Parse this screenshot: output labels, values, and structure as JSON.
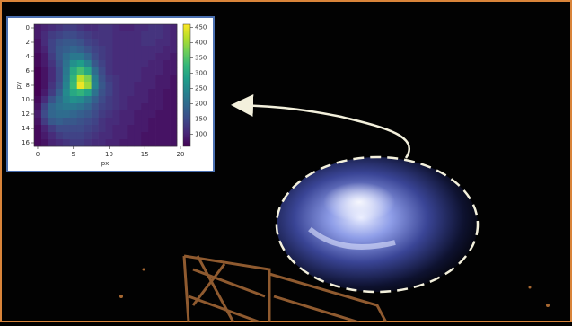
{
  "chart_data": {
    "type": "heatmap",
    "xlabel": "px",
    "ylabel": "py",
    "colormap": "viridis",
    "xlim": [
      -0.5,
      19.5
    ],
    "ylim": [
      16.5,
      -0.5
    ],
    "xticks": [
      0,
      5,
      10,
      15,
      20
    ],
    "yticks": [
      0,
      2,
      4,
      6,
      8,
      10,
      12,
      14,
      16
    ],
    "zlim": [
      60,
      460
    ],
    "zticks": [
      100,
      150,
      200,
      250,
      300,
      350,
      400,
      450
    ],
    "z": [
      [
        90,
        100,
        110,
        120,
        130,
        130,
        120,
        110,
        110,
        120,
        120,
        110,
        100,
        100,
        110,
        110,
        120,
        120,
        110,
        100
      ],
      [
        90,
        110,
        130,
        140,
        150,
        150,
        140,
        130,
        120,
        120,
        120,
        110,
        110,
        110,
        110,
        120,
        120,
        120,
        110,
        100
      ],
      [
        80,
        110,
        140,
        160,
        170,
        170,
        160,
        140,
        130,
        120,
        120,
        110,
        110,
        110,
        110,
        120,
        120,
        110,
        110,
        100
      ],
      [
        80,
        100,
        140,
        170,
        180,
        190,
        180,
        160,
        140,
        130,
        120,
        110,
        110,
        110,
        110,
        110,
        110,
        110,
        100,
        100
      ],
      [
        70,
        90,
        130,
        170,
        200,
        220,
        220,
        190,
        150,
        130,
        120,
        110,
        110,
        110,
        110,
        110,
        110,
        100,
        100,
        90
      ],
      [
        70,
        90,
        120,
        160,
        210,
        260,
        280,
        240,
        170,
        140,
        120,
        110,
        110,
        110,
        110,
        110,
        100,
        100,
        90,
        90
      ],
      [
        60,
        80,
        110,
        150,
        220,
        300,
        340,
        300,
        200,
        150,
        120,
        110,
        110,
        110,
        110,
        100,
        100,
        100,
        90,
        90
      ],
      [
        60,
        80,
        110,
        150,
        230,
        320,
        420,
        380,
        230,
        160,
        130,
        120,
        110,
        110,
        110,
        100,
        100,
        90,
        90,
        80
      ],
      [
        60,
        80,
        120,
        160,
        240,
        330,
        450,
        400,
        240,
        170,
        140,
        120,
        110,
        110,
        100,
        100,
        100,
        90,
        90,
        80
      ],
      [
        60,
        90,
        130,
        180,
        250,
        300,
        320,
        290,
        210,
        160,
        140,
        120,
        110,
        110,
        100,
        100,
        90,
        90,
        80,
        80
      ],
      [
        70,
        110,
        160,
        200,
        240,
        260,
        250,
        220,
        180,
        150,
        130,
        120,
        110,
        100,
        100,
        100,
        90,
        90,
        80,
        80
      ],
      [
        80,
        140,
        190,
        210,
        220,
        220,
        210,
        190,
        160,
        140,
        130,
        120,
        110,
        100,
        100,
        90,
        90,
        90,
        80,
        80
      ],
      [
        90,
        150,
        190,
        200,
        200,
        190,
        180,
        170,
        150,
        130,
        120,
        110,
        100,
        100,
        90,
        90,
        90,
        80,
        80,
        80
      ],
      [
        80,
        130,
        170,
        180,
        170,
        170,
        160,
        150,
        140,
        120,
        110,
        110,
        100,
        100,
        90,
        90,
        80,
        80,
        80,
        80
      ],
      [
        70,
        100,
        130,
        150,
        150,
        150,
        150,
        140,
        130,
        120,
        110,
        100,
        100,
        90,
        90,
        90,
        80,
        80,
        80,
        80
      ],
      [
        70,
        90,
        110,
        130,
        140,
        140,
        140,
        130,
        120,
        110,
        110,
        100,
        100,
        90,
        90,
        80,
        80,
        80,
        80,
        80
      ],
      [
        70,
        80,
        100,
        110,
        120,
        130,
        130,
        120,
        110,
        110,
        100,
        100,
        90,
        90,
        90,
        80,
        80,
        80,
        80,
        80
      ]
    ]
  }
}
